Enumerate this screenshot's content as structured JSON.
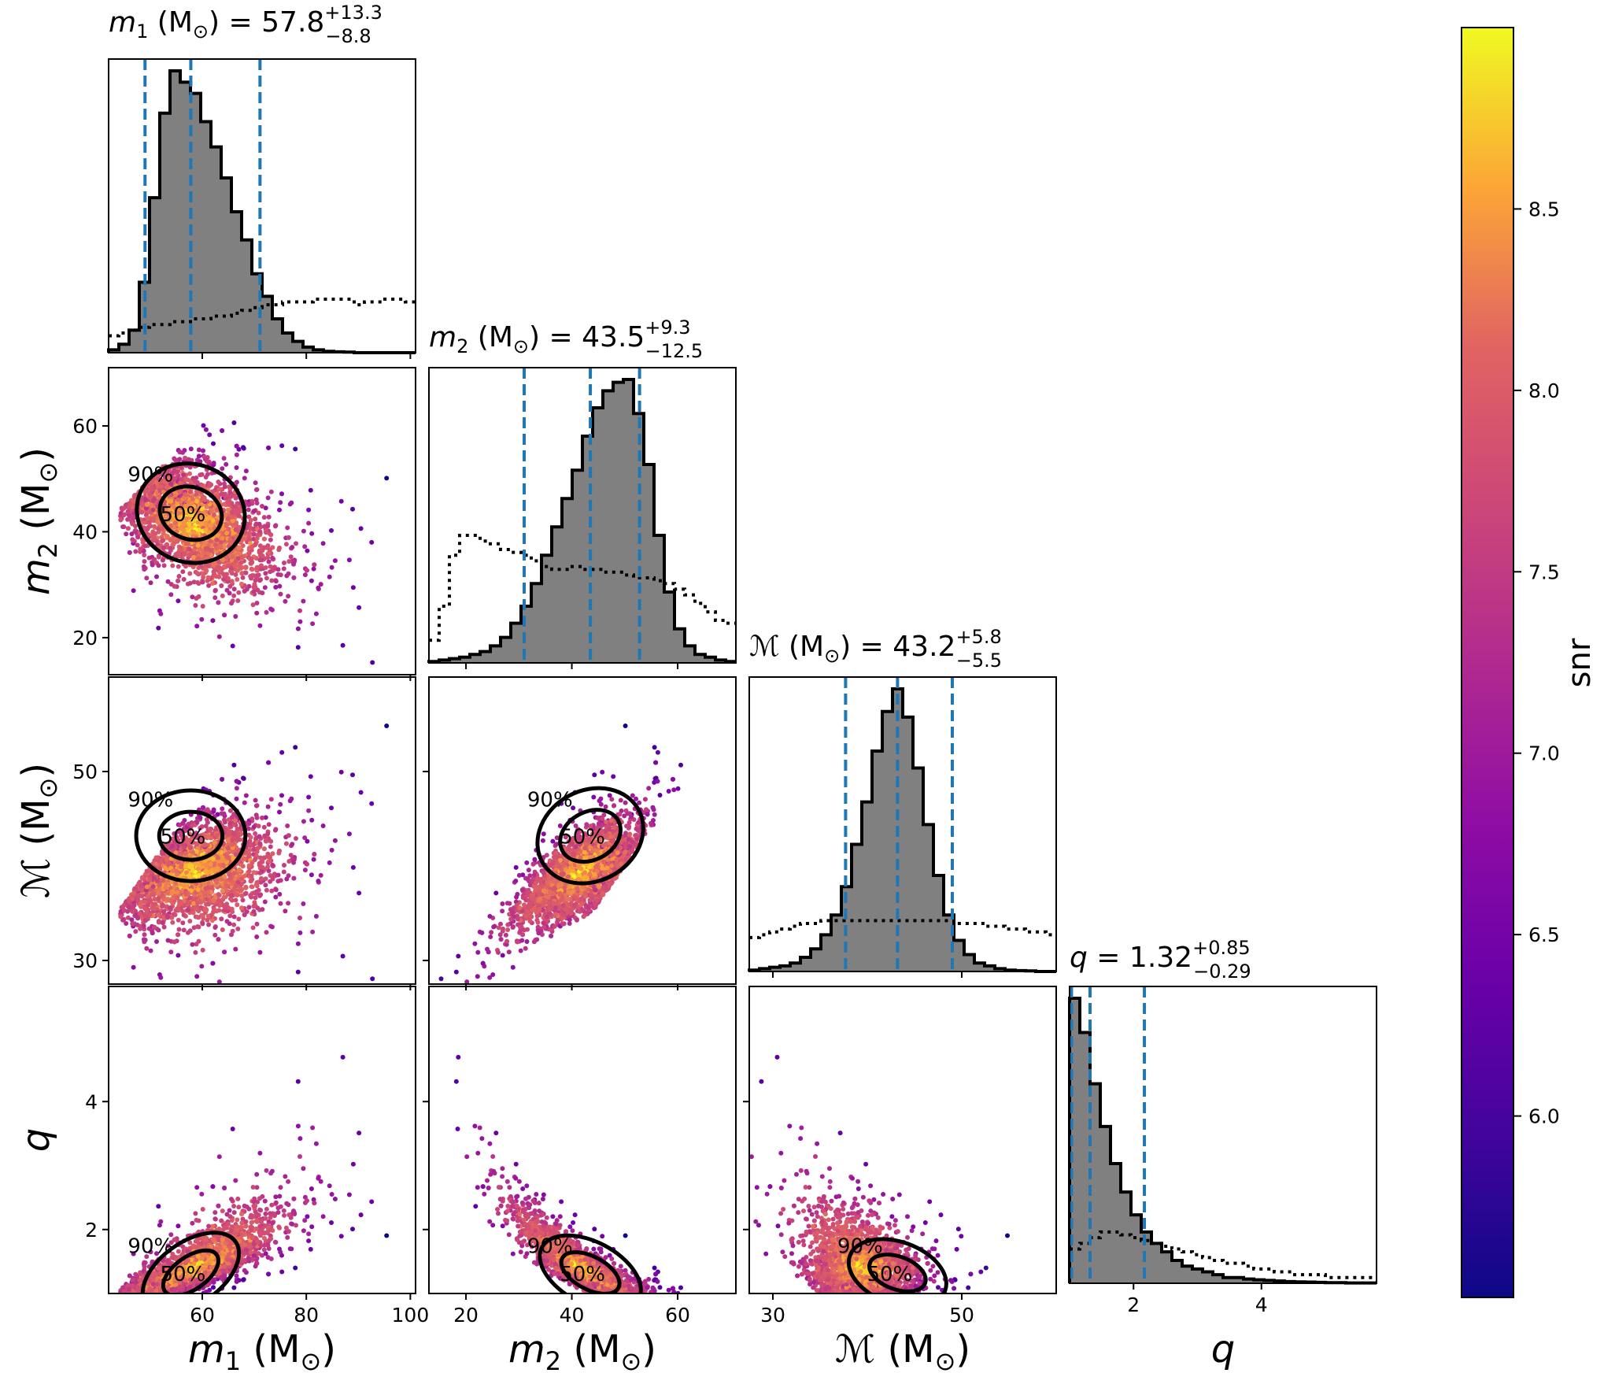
{
  "chart_data": {
    "type": "corner",
    "colorbar": {
      "label": "snr",
      "colormap": "plasma",
      "range": [
        5.5,
        9.0
      ],
      "ticks": [
        "6.0",
        "6.5",
        "7.0",
        "7.5",
        "8.0",
        "8.5"
      ]
    },
    "parameters": [
      {
        "key": "m1",
        "symbol": "m",
        "sub": "1",
        "unit": "(M",
        "title_value": "57.8",
        "title_plus": "+13.3",
        "title_minus": "−8.8",
        "axis_label": "(M",
        "range": [
          42,
          101
        ],
        "ticks": [
          60,
          80,
          100
        ],
        "tick_labels": [
          "60",
          "80",
          "100"
        ],
        "quantiles": [
          49.0,
          57.8,
          71.1
        ],
        "hist": [
          1,
          3,
          8,
          25,
          55,
          85,
          100,
          96,
          92,
          82,
          73,
          62,
          50,
          40,
          28,
          20,
          12,
          7,
          4,
          2,
          1,
          0.5,
          0.3,
          0.2,
          0,
          0,
          0,
          0,
          0,
          0
        ],
        "prior": [
          6,
          7,
          8,
          9,
          10,
          10,
          11,
          11,
          12,
          12,
          13,
          13,
          14,
          15,
          16,
          17,
          17,
          18,
          18,
          18,
          19,
          19,
          19,
          19,
          17,
          18,
          18,
          19,
          19,
          18
        ]
      },
      {
        "key": "m2",
        "symbol": "m",
        "sub": "2",
        "unit": "(M",
        "title_value": "43.5",
        "title_plus": "+9.3",
        "title_minus": "−12.5",
        "axis_label": "(M",
        "range": [
          13,
          71
        ],
        "ticks": [
          20,
          40,
          60
        ],
        "tick_labels": [
          "20",
          "40",
          "60"
        ],
        "quantiles": [
          31.0,
          43.5,
          52.8
        ],
        "hist": [
          0.5,
          1,
          1.5,
          2,
          3,
          4,
          6,
          9,
          14,
          20,
          28,
          38,
          48,
          58,
          68,
          80,
          90,
          96,
          99,
          100,
          88,
          70,
          45,
          25,
          12,
          6,
          3,
          2,
          1,
          0.5
        ],
        "prior": [
          8,
          20,
          38,
          45,
          45,
          43,
          42,
          40,
          39,
          38,
          36,
          34,
          33,
          33,
          34,
          33,
          33,
          32,
          32,
          31,
          30,
          30,
          29,
          28,
          26,
          24,
          21,
          18,
          15,
          14
        ]
      },
      {
        "key": "mc",
        "symbol": "ℳ",
        "sub": "",
        "unit": "(M",
        "title_value": "43.2",
        "title_plus": "+5.8",
        "title_minus": "−5.5",
        "axis_label": "(M",
        "range": [
          27.5,
          60
        ],
        "ticks": [
          30,
          50
        ],
        "tick_labels": [
          "30",
          "50"
        ],
        "quantiles": [
          37.7,
          43.2,
          49.0
        ],
        "hist": [
          0.5,
          1,
          1.5,
          2,
          3,
          5,
          8,
          13,
          20,
          30,
          45,
          60,
          78,
          92,
          100,
          90,
          72,
          52,
          34,
          20,
          11,
          6,
          3,
          2,
          1,
          0.5,
          0.3,
          0.2,
          0,
          0
        ],
        "prior": [
          12,
          13,
          14,
          15,
          16,
          17,
          17,
          18,
          18,
          18,
          18,
          18,
          18,
          18,
          18,
          18,
          18,
          18,
          18,
          18,
          17,
          17,
          17,
          16,
          16,
          15,
          15,
          14,
          14,
          13
        ]
      },
      {
        "key": "q",
        "symbol": "q",
        "sub": "",
        "unit": "",
        "title_value": "1.32",
        "title_plus": "+0.85",
        "title_minus": "−0.29",
        "axis_label": "",
        "range": [
          1,
          5.8
        ],
        "ticks": [
          2,
          4
        ],
        "tick_labels": [
          "2",
          "4"
        ],
        "quantiles": [
          1.03,
          1.32,
          2.17
        ],
        "hist": [
          100,
          88,
          70,
          55,
          42,
          32,
          24,
          18,
          14,
          11,
          8,
          6,
          5,
          4,
          3,
          2,
          2,
          1.5,
          1.2,
          1,
          0.8,
          0.6,
          0.5,
          0.4,
          0.3,
          0.2,
          0.2,
          0.1,
          0.1,
          0.1
        ],
        "prior": [
          12,
          14,
          16,
          18,
          18,
          17,
          16,
          15,
          14,
          13,
          12,
          11,
          10,
          9,
          8,
          7,
          7,
          6,
          5,
          5,
          4,
          4,
          3,
          3,
          3,
          2,
          2,
          2,
          2,
          2
        ]
      }
    ],
    "contour_levels": [
      "50%",
      "90%"
    ]
  }
}
